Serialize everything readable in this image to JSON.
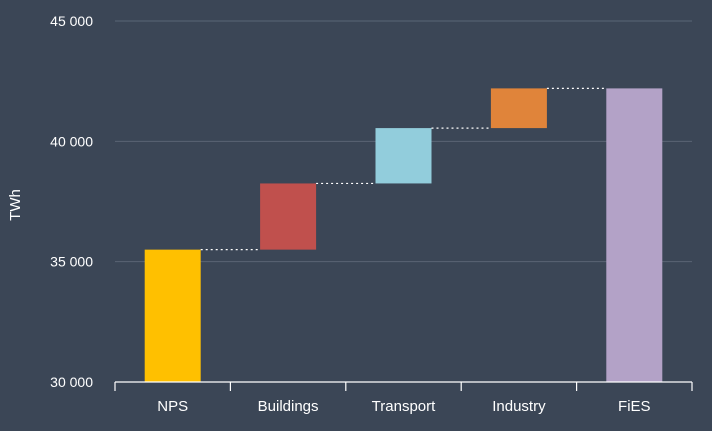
{
  "chart_data": {
    "type": "waterfall",
    "ylabel": "TWh",
    "ylim": [
      30000,
      45000
    ],
    "yticks": [
      30000,
      35000,
      40000,
      45000
    ],
    "ytick_labels": [
      "30 000",
      "35 000",
      "40 000",
      "45 000"
    ],
    "categories": [
      "NPS",
      "Buildings",
      "Transport",
      "Industry",
      "FiES"
    ],
    "steps": [
      {
        "label": "NPS",
        "start": 30000,
        "end": 35500,
        "kind": "total",
        "color": "#ffc000"
      },
      {
        "label": "Buildings",
        "start": 35500,
        "end": 38250,
        "kind": "increase",
        "color": "#c0504d"
      },
      {
        "label": "Transport",
        "start": 38250,
        "end": 40550,
        "kind": "increase",
        "color": "#92cddc"
      },
      {
        "label": "Industry",
        "start": 40550,
        "end": 42200,
        "kind": "increase",
        "color": "#e0843a"
      },
      {
        "label": "FiES",
        "start": 30000,
        "end": 42200,
        "kind": "total",
        "color": "#b3a2c7"
      }
    ],
    "grid": true,
    "connectors": "dotted",
    "colors": {
      "background": "#3b4656",
      "gridline": "#5a6575",
      "axis": "#ffffff",
      "text": "#ffffff",
      "connector": "#ffffff"
    }
  }
}
